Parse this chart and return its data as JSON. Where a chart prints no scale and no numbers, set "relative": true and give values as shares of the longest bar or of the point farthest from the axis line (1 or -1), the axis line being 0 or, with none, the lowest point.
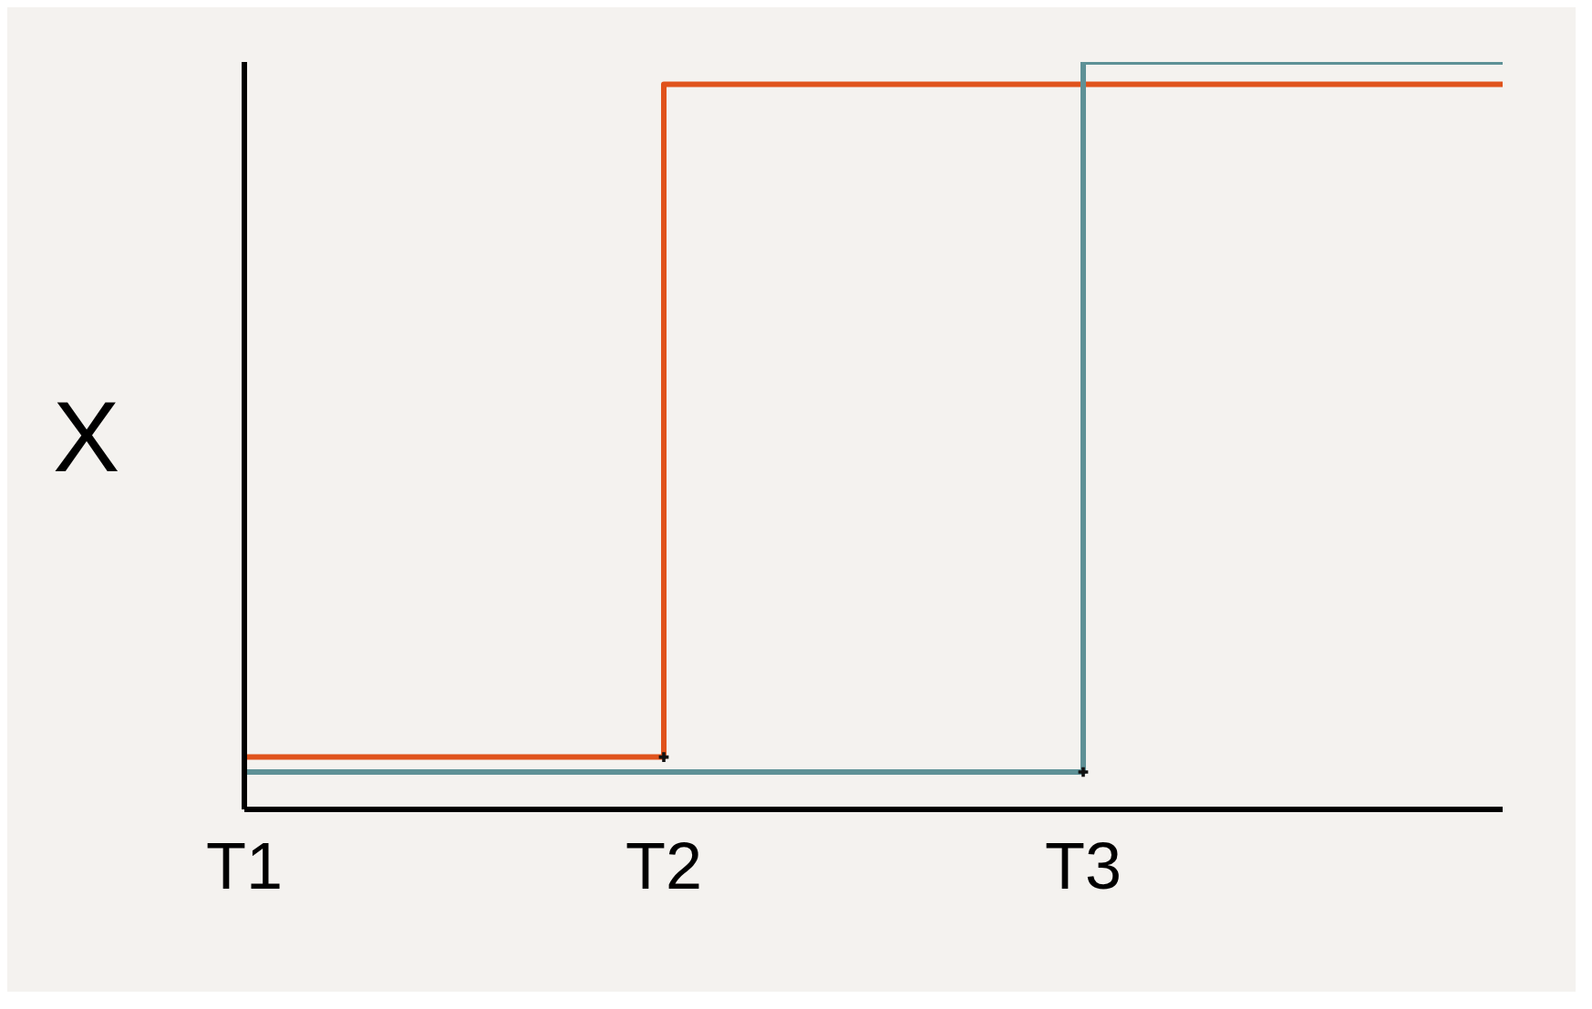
{
  "chart_data": {
    "type": "step",
    "relative": true,
    "ylabel": "X",
    "categories": [
      "T1",
      "T2",
      "T3",
      null
    ],
    "line_style": "solid",
    "marker": "none",
    "grid": false,
    "legend": false,
    "series": [
      {
        "color": "#e0531c",
        "values": [
          0.07,
          0.97,
          0.97,
          0.97
        ]
      },
      {
        "color": "#5e9196",
        "values": [
          0.05,
          0.05,
          1,
          1
        ]
      },
      {
        "type": "scatter",
        "color": "#111111",
        "marker": "cross",
        "x": [
          "T2",
          "T3"
        ],
        "values": [
          0.07,
          0.05
        ]
      }
    ]
  }
}
